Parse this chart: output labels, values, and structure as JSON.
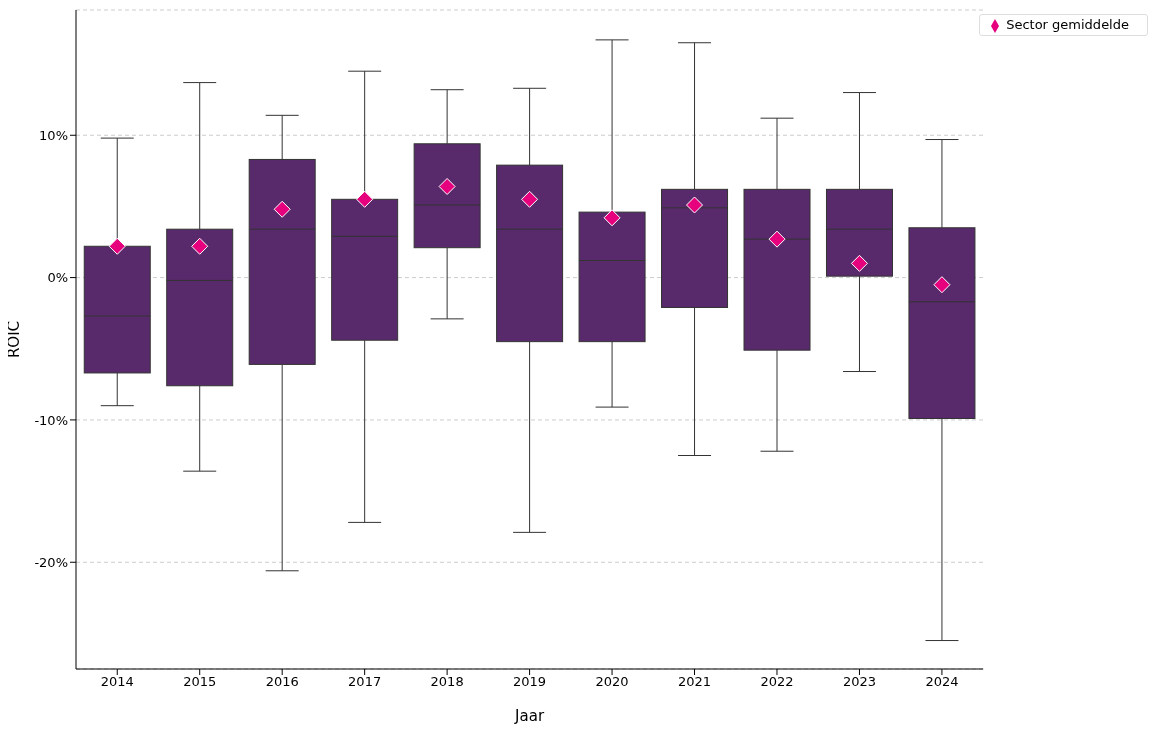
{
  "chart_data": {
    "type": "box",
    "xlabel": "Jaar",
    "ylabel": "ROIC",
    "color": "#582a6b",
    "categories": [
      "2014",
      "2015",
      "2016",
      "2017",
      "2018",
      "2019",
      "2020",
      "2021",
      "2022",
      "2023",
      "2024"
    ],
    "boxes": [
      {
        "low": -9.0,
        "q1": -6.7,
        "median": -2.7,
        "q3": 2.2,
        "high": 9.8
      },
      {
        "low": -13.6,
        "q1": -7.6,
        "median": -0.2,
        "q3": 3.4,
        "high": 13.7
      },
      {
        "low": -20.6,
        "q1": -6.1,
        "median": 3.4,
        "q3": 8.3,
        "high": 11.4
      },
      {
        "low": -17.2,
        "q1": -4.4,
        "median": 2.9,
        "q3": 5.5,
        "high": 14.5
      },
      {
        "low": -2.9,
        "q1": 2.1,
        "median": 5.1,
        "q3": 9.4,
        "high": 13.2
      },
      {
        "low": -17.9,
        "q1": -4.5,
        "median": 3.4,
        "q3": 7.9,
        "high": 13.3
      },
      {
        "low": -9.1,
        "q1": -4.5,
        "median": 1.2,
        "q3": 4.6,
        "high": 16.7
      },
      {
        "low": -12.5,
        "q1": -2.1,
        "median": 4.9,
        "q3": 6.2,
        "high": 16.5
      },
      {
        "low": -12.2,
        "q1": -5.1,
        "median": 2.7,
        "q3": 6.2,
        "high": 11.2
      },
      {
        "low": -6.6,
        "q1": 0.1,
        "median": 3.4,
        "q3": 6.2,
        "high": 13.0
      },
      {
        "low": -25.5,
        "q1": -9.9,
        "median": -1.7,
        "q3": 3.5,
        "high": 9.7
      }
    ],
    "series": [
      {
        "name": "Sector gemiddelde",
        "type": "scatter",
        "color": "#e6007e",
        "marker": "diamond",
        "values": [
          2.2,
          2.2,
          4.8,
          5.5,
          6.4,
          5.5,
          4.2,
          5.1,
          2.7,
          1.0,
          -0.5
        ]
      }
    ],
    "ylim": [
      -27.5,
      18.8
    ],
    "yticks": [
      {
        "value": -20,
        "label": "-20%"
      },
      {
        "value": -10,
        "label": "-10%"
      },
      {
        "value": 0,
        "label": "0%"
      },
      {
        "value": 10,
        "label": "10%"
      }
    ],
    "grid": "y",
    "legend": "top right"
  }
}
